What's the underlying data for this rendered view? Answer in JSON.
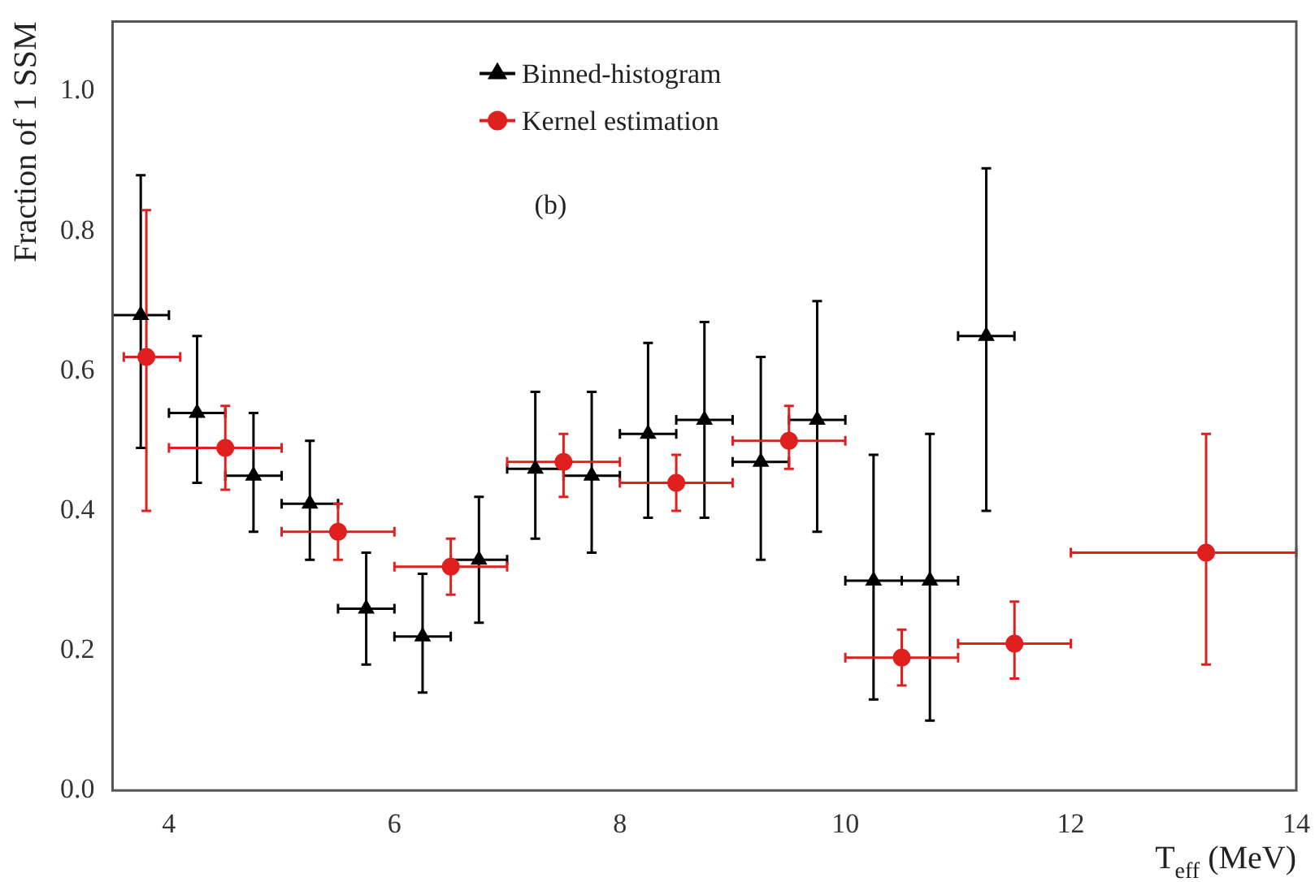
{
  "chart_data": {
    "type": "scatter",
    "xlabel": "T$_{eff}$ (MeV)",
    "ylabel": "Fraction of 1 SSM",
    "xlim": [
      3.5,
      14
    ],
    "xticks": [
      4,
      6,
      8,
      10,
      12,
      14
    ],
    "ylim": [
      0,
      1.1
    ],
    "yticks": [
      {
        "value": 0,
        "label": "0.0"
      },
      0.2,
      0.4,
      0.6,
      0.8,
      {
        "value": 1,
        "label": "1.0"
      }
    ],
    "grid": false,
    "legend": "top",
    "annotations": [
      "(b)"
    ],
    "series": [
      {
        "name": "Binned-histogram",
        "color": "#000000",
        "marker": "triangle",
        "x": [
          3.75,
          4.25,
          4.75,
          5.25,
          5.75,
          6.25,
          6.75,
          7.25,
          7.75,
          8.25,
          8.75,
          9.25,
          9.75,
          10.25,
          10.75,
          11.25
        ],
        "values": [
          0.68,
          0.54,
          0.45,
          0.41,
          0.26,
          0.22,
          0.33,
          0.46,
          0.45,
          0.51,
          0.53,
          0.47,
          0.53,
          0.3,
          0.3,
          0.65
        ],
        "errors": [
          [
            0.49,
            0.88
          ],
          [
            0.44,
            0.65
          ],
          [
            0.37,
            0.54
          ],
          [
            0.33,
            0.5
          ],
          [
            0.18,
            0.34
          ],
          [
            0.14,
            0.31
          ],
          [
            0.24,
            0.42
          ],
          [
            0.36,
            0.57
          ],
          [
            0.34,
            0.57
          ],
          [
            0.39,
            0.64
          ],
          [
            0.39,
            0.67
          ],
          [
            0.33,
            0.62
          ],
          [
            0.37,
            0.7
          ],
          [
            0.13,
            0.48
          ],
          [
            0.1,
            0.51
          ],
          [
            0.4,
            0.89
          ]
        ],
        "xerrors": [
          0.25,
          0.25,
          0.25,
          0.25,
          0.25,
          0.25,
          0.25,
          0.25,
          0.25,
          0.25,
          0.25,
          0.25,
          0.25,
          0.25,
          0.25,
          0.25
        ]
      },
      {
        "name": "Kernel estimation",
        "color": "#e0201e",
        "marker": "circle",
        "x": [
          3.8,
          4.5,
          5.5,
          6.5,
          7.5,
          8.5,
          9.5,
          10.5,
          11.5,
          13.2
        ],
        "values": [
          0.62,
          0.49,
          0.37,
          0.32,
          0.47,
          0.44,
          0.5,
          0.19,
          0.21,
          0.34
        ],
        "errors": [
          [
            0.4,
            0.83
          ],
          [
            0.43,
            0.55
          ],
          [
            0.33,
            0.41
          ],
          [
            0.28,
            0.36
          ],
          [
            0.42,
            0.51
          ],
          [
            0.4,
            0.48
          ],
          [
            0.46,
            0.55
          ],
          [
            0.15,
            0.23
          ],
          [
            0.16,
            0.27
          ],
          [
            0.18,
            0.51
          ]
        ],
        "xerrors": [
          [
            3.6,
            4.1
          ],
          [
            4,
            5
          ],
          [
            5,
            6
          ],
          [
            6,
            7
          ],
          [
            7,
            8
          ],
          [
            8,
            9
          ],
          [
            9,
            10
          ],
          [
            10,
            11
          ],
          [
            11,
            12
          ],
          [
            12,
            14
          ]
        ]
      }
    ]
  }
}
